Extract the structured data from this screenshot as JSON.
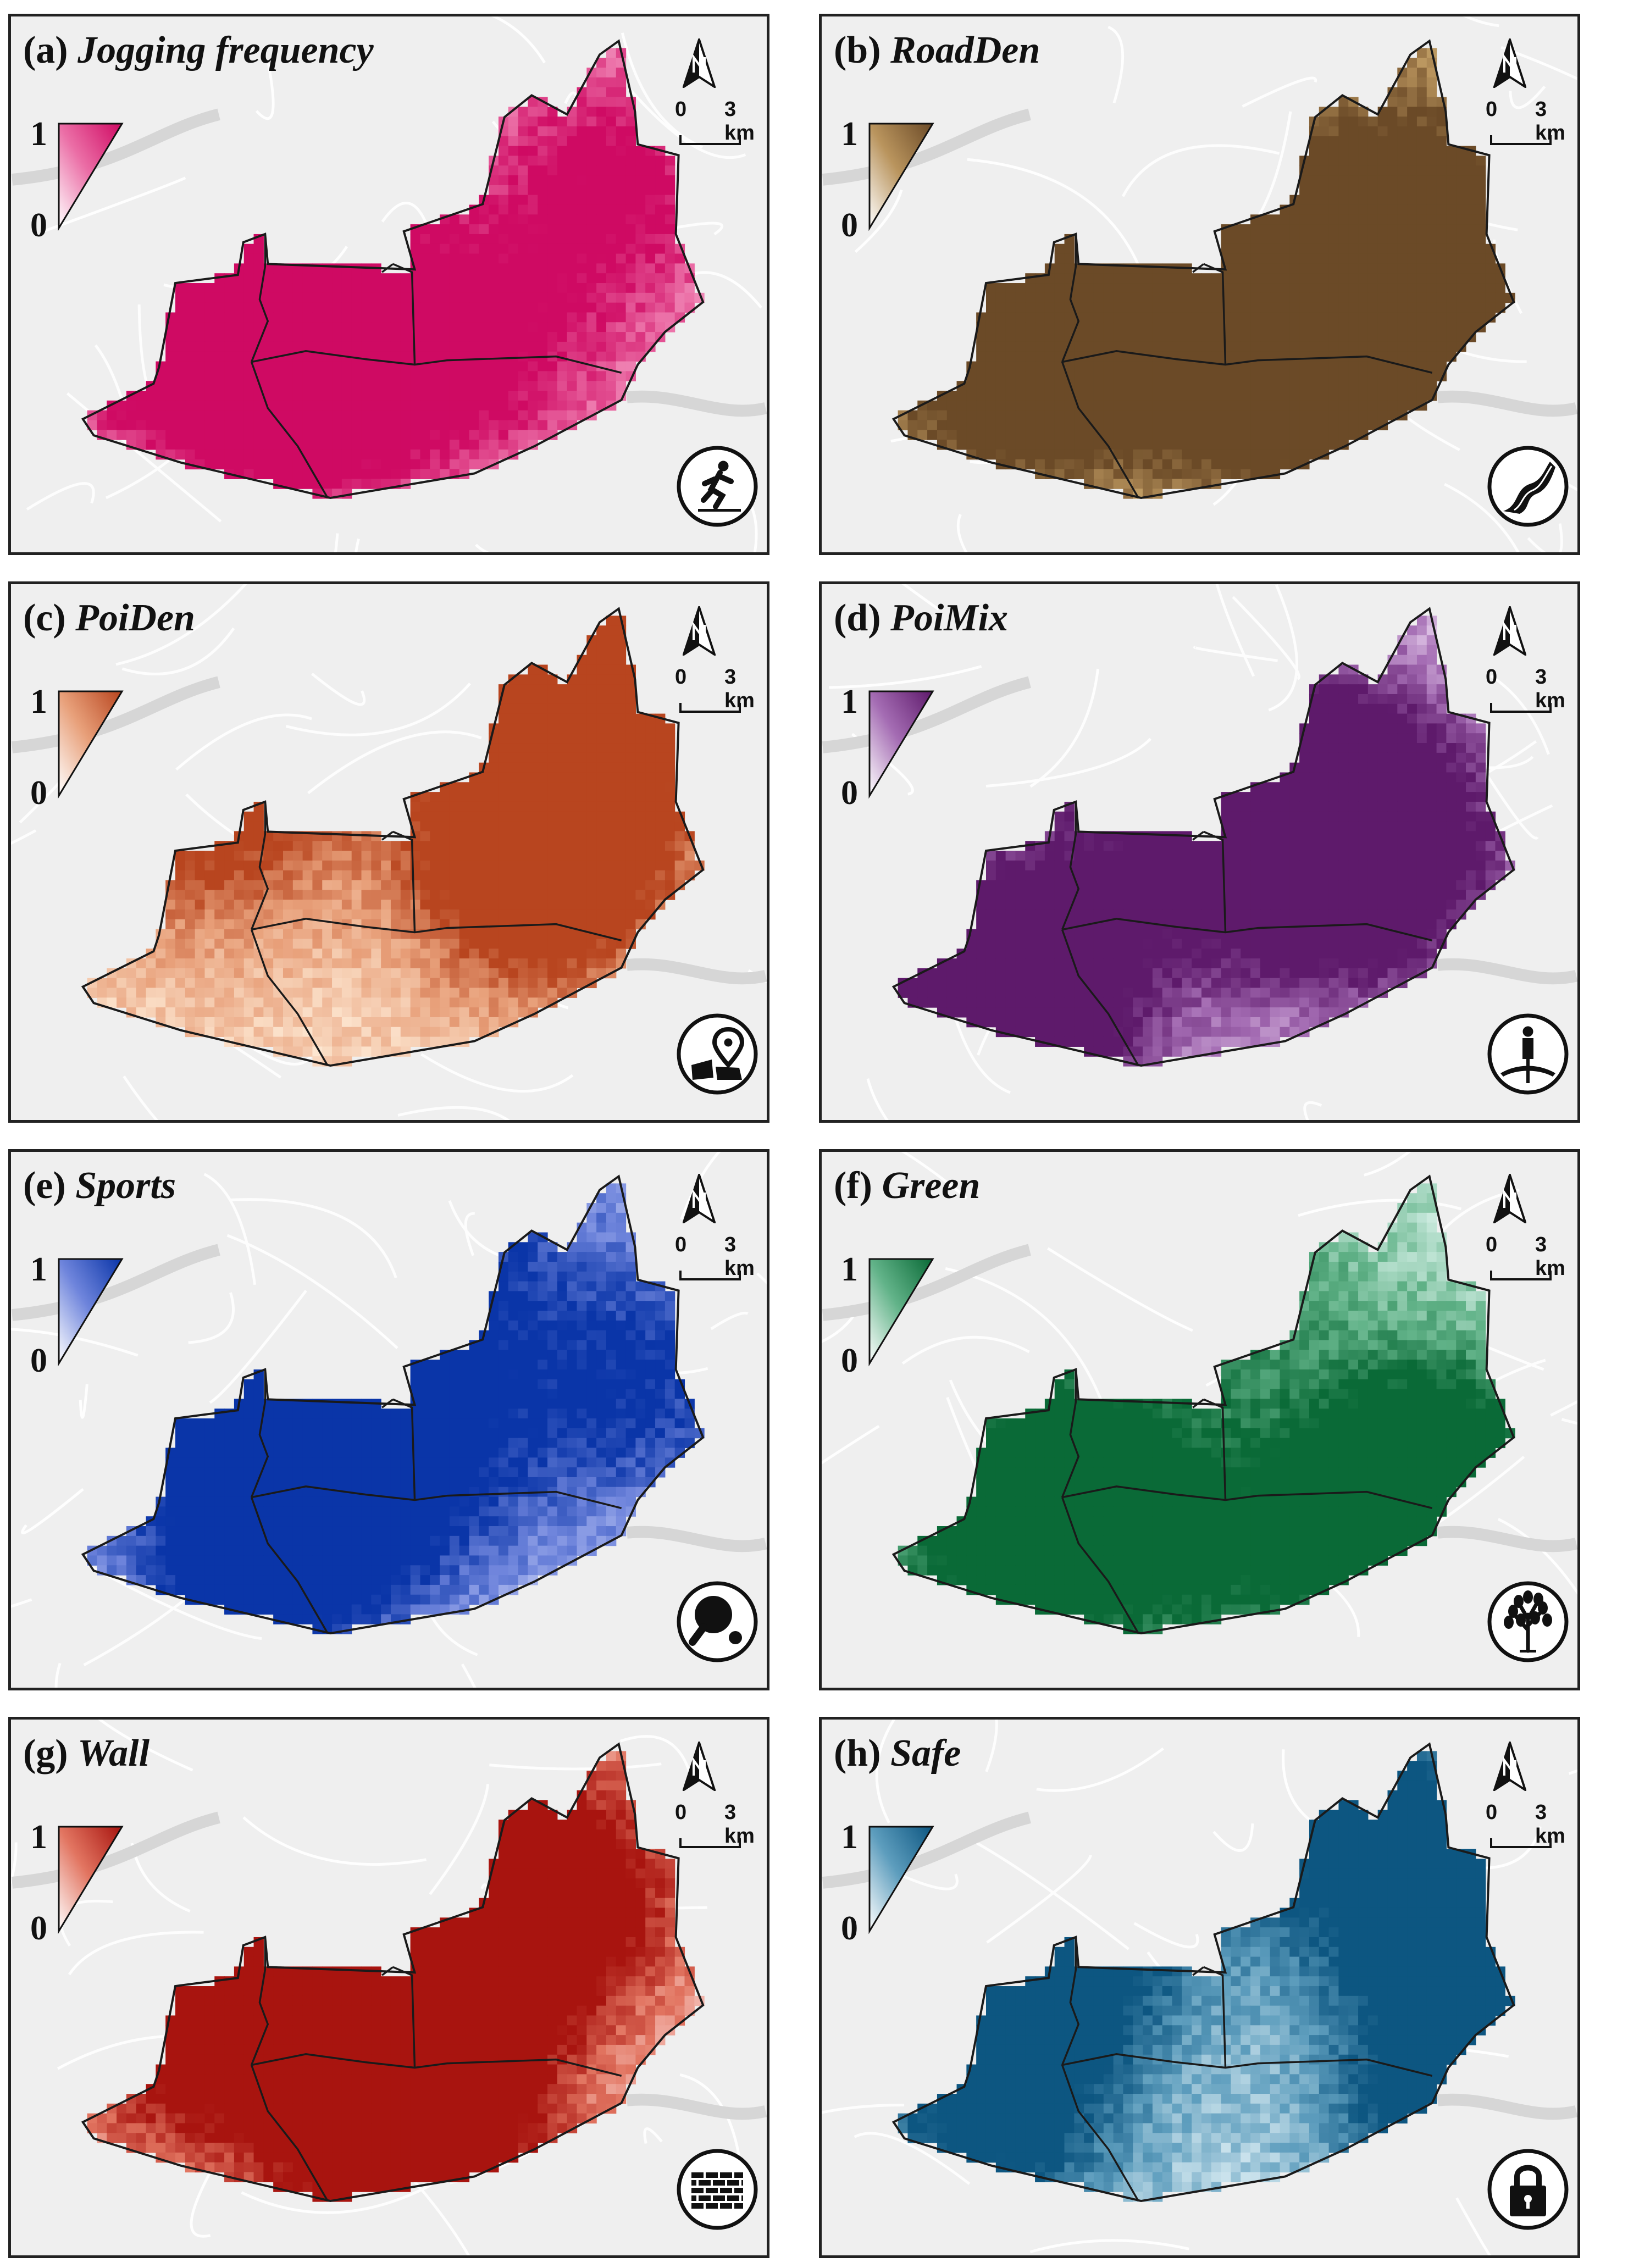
{
  "legend_max": "1",
  "legend_min": "0",
  "scale": {
    "start": "0",
    "end": "3 km"
  },
  "panels": [
    {
      "letter": "(a)",
      "variable": "Jogging frequency",
      "light": "#fbd6e6",
      "mid": "#eb6ea6",
      "dark": "#cf0a63",
      "icon": "jogger-icon"
    },
    {
      "letter": "(b)",
      "variable": "RoadDen",
      "light": "#f3e8a6",
      "mid": "#b9945d",
      "dark": "#6b4a27",
      "icon": "road-icon"
    },
    {
      "letter": "(c)",
      "variable": "PoiDen",
      "light": "#fde6d0",
      "mid": "#e8a07a",
      "dark": "#b8451f",
      "icon": "map-pin-icon"
    },
    {
      "letter": "(d)",
      "variable": "PoiMix",
      "light": "#ecd9f2",
      "mid": "#a46cb3",
      "dark": "#5e1a6b",
      "icon": "person-crossroads-icon"
    },
    {
      "letter": "(e)",
      "variable": "Sports",
      "light": "#d4d9fa",
      "mid": "#6f85dc",
      "dark": "#0a35a8",
      "icon": "ping-pong-icon"
    },
    {
      "letter": "(f)",
      "variable": "Green",
      "light": "#d9f2ea",
      "mid": "#62b389",
      "dark": "#0a6a37",
      "icon": "tree-icon"
    },
    {
      "letter": "(g)",
      "variable": "Wall",
      "light": "#fcdcd8",
      "mid": "#e27561",
      "dark": "#a8140f",
      "icon": "brick-wall-icon"
    },
    {
      "letter": "(h)",
      "variable": "Safe",
      "light": "#d8ebf2",
      "mid": "#5d9dbd",
      "dark": "#0d5681",
      "icon": "padlock-icon"
    }
  ]
}
